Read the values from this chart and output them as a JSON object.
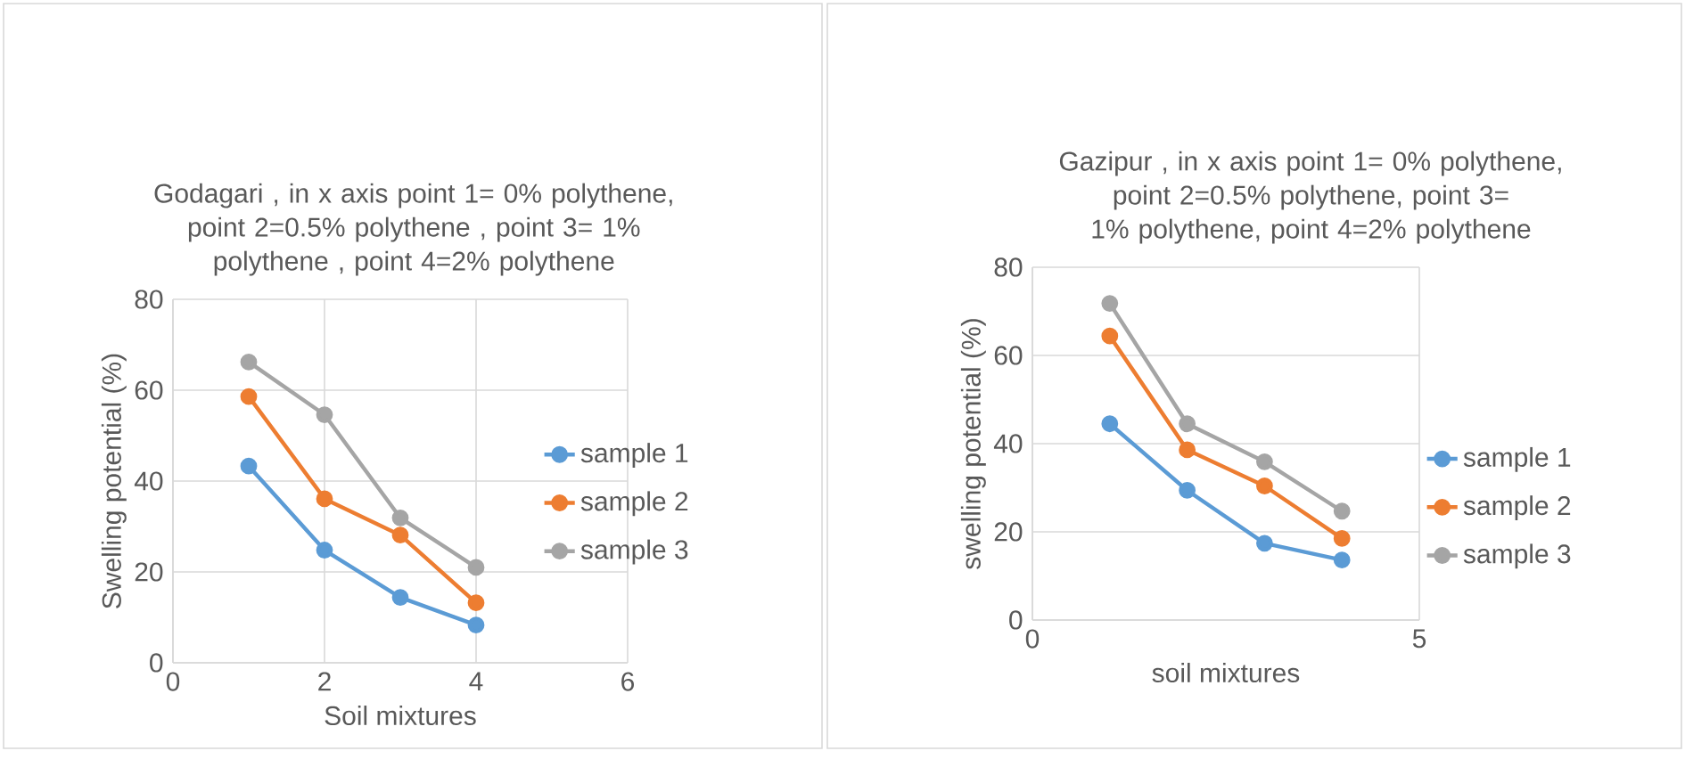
{
  "chart_data": [
    {
      "type": "line",
      "title": "Godagari , in x axis point 1= 0% polythene, point 2=0.5% polythene , point 3= 1% polythene , point 4=2% polythene",
      "xlabel": "Soil mixtures",
      "ylabel": "Swelling potential (%)",
      "x": [
        1,
        2,
        3,
        4
      ],
      "xlim": [
        0,
        6
      ],
      "xticks": [
        0,
        2,
        4,
        6
      ],
      "ylim": [
        0,
        80
      ],
      "yticks": [
        0,
        20,
        40,
        60,
        80
      ],
      "grid": true,
      "legend": "right",
      "marker": "circle",
      "series": [
        {
          "name": "sample 1",
          "color": "#5b9bd5",
          "values": [
            43.3,
            24.8,
            14.4,
            8.3
          ]
        },
        {
          "name": "sample 2",
          "color": "#ed7d31",
          "values": [
            58.6,
            36.1,
            28.1,
            13.2
          ]
        },
        {
          "name": "sample 3",
          "color": "#a5a5a5",
          "values": [
            66.2,
            54.6,
            31.9,
            21.0
          ]
        }
      ]
    },
    {
      "type": "line",
      "title": "Gazipur , in x axis point 1= 0% polythene, point 2=0.5% polythene, point 3= 1% polythene, point 4=2% polythene",
      "xlabel": "soil mixtures",
      "ylabel": "swelling potential (%)",
      "x": [
        1,
        2,
        3,
        4
      ],
      "xlim": [
        0,
        5
      ],
      "xticks": [
        0,
        5
      ],
      "ylim": [
        0,
        80
      ],
      "yticks": [
        0,
        20,
        40,
        60,
        80
      ],
      "grid": true,
      "legend": "right",
      "marker": "circle",
      "series": [
        {
          "name": "sample 1",
          "color": "#5b9bd5",
          "values": [
            44.5,
            29.4,
            17.4,
            13.6
          ]
        },
        {
          "name": "sample 2",
          "color": "#ed7d31",
          "values": [
            64.4,
            38.6,
            30.4,
            18.5
          ]
        },
        {
          "name": "sample 3",
          "color": "#a5a5a5",
          "values": [
            71.8,
            44.5,
            35.9,
            24.7
          ]
        }
      ]
    }
  ]
}
